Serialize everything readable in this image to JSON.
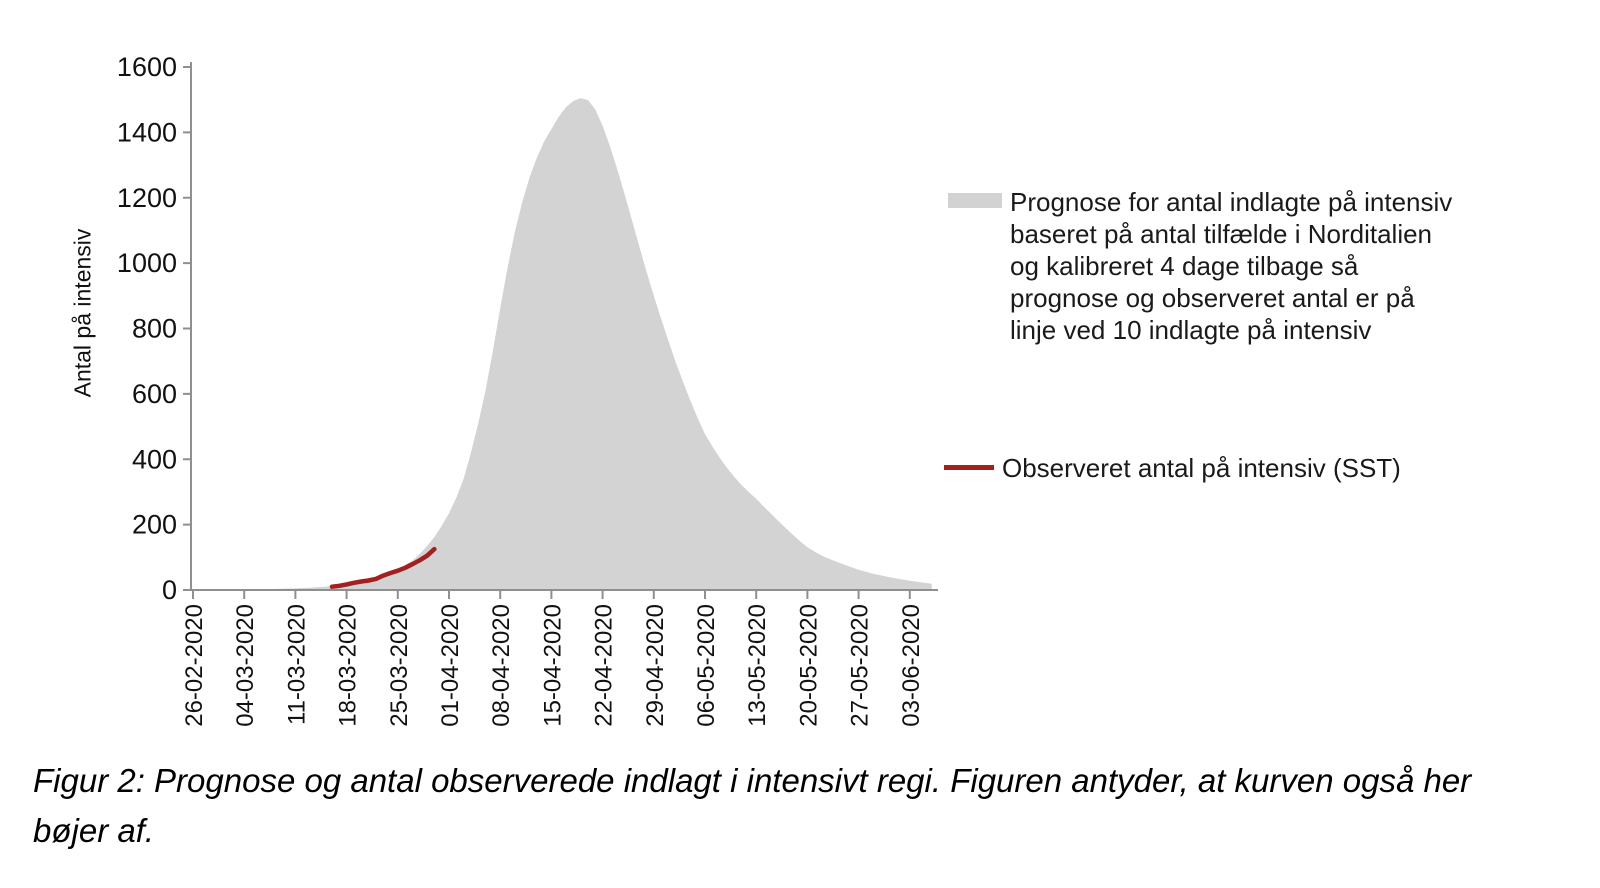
{
  "figure": {
    "caption": "Figur 2: Prognose og antal observerede indlagt i intensivt regi. Figuren antyder, at kurven også her bøjer af."
  },
  "legend": {
    "items": [
      {
        "swatch": "gray-area-swatch",
        "color": "#d2d2d2",
        "label": "Prognose for antal indlagte på intensiv baseret på antal tilfælde i Norditalien og kalibreret 4 dage tilbage så prognose og observeret antal er på linje ved 10 indlagte på intensiv"
      },
      {
        "swatch": "red-line-swatch",
        "color": "#a32020",
        "label": "Observeret antal på intensiv (SST)"
      }
    ]
  },
  "chart_data": {
    "type": "area",
    "title": "",
    "xlabel": "",
    "ylabel": "Antal på intensiv",
    "ylim": [
      0,
      1600
    ],
    "grid": false,
    "legend_position": "right",
    "y_ticks": [
      0,
      200,
      400,
      600,
      800,
      1000,
      1200,
      1400,
      1600
    ],
    "x_tick_labels": [
      "26-02-2020",
      "04-03-2020",
      "11-03-2020",
      "18-03-2020",
      "25-03-2020",
      "01-04-2020",
      "08-04-2020",
      "15-04-2020",
      "22-04-2020",
      "29-04-2020",
      "06-05-2020",
      "13-05-2020",
      "20-05-2020",
      "27-05-2020",
      "03-06-2020"
    ],
    "x_tick_interval_days": 7,
    "x_unit": "days since 26-02-2020",
    "series": [
      {
        "name": "Prognose for antal indlagte på intensiv baseret på antal tilfælde i Norditalien og kalibreret 4 dage tilbage så prognose og observeret antal er på linje ved 10 indlagte på intensiv",
        "type": "area",
        "color": "#d3d3d3",
        "peak": {
          "date": "19-04-2020",
          "value": 1505
        },
        "points_day_value": [
          [
            0,
            0
          ],
          [
            4,
            1
          ],
          [
            8,
            2
          ],
          [
            11,
            3
          ],
          [
            14,
            5
          ],
          [
            16,
            7
          ],
          [
            18,
            10
          ],
          [
            20,
            13
          ],
          [
            22,
            20
          ],
          [
            24,
            30
          ],
          [
            26,
            45
          ],
          [
            28,
            62
          ],
          [
            30,
            90
          ],
          [
            31,
            110
          ],
          [
            32,
            135
          ],
          [
            33,
            162
          ],
          [
            34,
            196
          ],
          [
            35,
            235
          ],
          [
            36,
            282
          ],
          [
            37,
            340
          ],
          [
            38,
            420
          ],
          [
            39,
            510
          ],
          [
            40,
            612
          ],
          [
            41,
            732
          ],
          [
            42,
            862
          ],
          [
            43,
            985
          ],
          [
            44,
            1095
          ],
          [
            45,
            1185
          ],
          [
            46,
            1262
          ],
          [
            47,
            1322
          ],
          [
            48,
            1372
          ],
          [
            49,
            1410
          ],
          [
            50,
            1448
          ],
          [
            51,
            1477
          ],
          [
            52,
            1496
          ],
          [
            53,
            1505
          ],
          [
            54,
            1499
          ],
          [
            55,
            1470
          ],
          [
            56,
            1420
          ],
          [
            57,
            1358
          ],
          [
            58,
            1288
          ],
          [
            59,
            1212
          ],
          [
            60,
            1132
          ],
          [
            61,
            1052
          ],
          [
            62,
            974
          ],
          [
            63,
            900
          ],
          [
            64,
            830
          ],
          [
            65,
            762
          ],
          [
            66,
            697
          ],
          [
            67,
            636
          ],
          [
            68,
            579
          ],
          [
            69,
            526
          ],
          [
            70,
            477
          ],
          [
            71,
            440
          ],
          [
            72,
            405
          ],
          [
            73,
            374
          ],
          [
            74,
            346
          ],
          [
            75,
            321
          ],
          [
            76,
            299
          ],
          [
            77,
            279
          ],
          [
            78,
            256
          ],
          [
            79,
            234
          ],
          [
            80,
            212
          ],
          [
            81,
            190
          ],
          [
            82,
            169
          ],
          [
            83,
            149
          ],
          [
            84,
            131
          ],
          [
            85,
            117
          ],
          [
            86,
            105
          ],
          [
            87,
            95
          ],
          [
            88,
            86
          ],
          [
            89,
            78
          ],
          [
            90,
            70
          ],
          [
            91,
            62
          ],
          [
            92,
            56
          ],
          [
            93,
            50
          ],
          [
            94,
            45
          ],
          [
            95,
            40
          ],
          [
            96,
            36
          ],
          [
            97,
            32
          ],
          [
            98,
            28
          ],
          [
            99,
            25
          ],
          [
            100,
            22
          ],
          [
            101,
            19
          ]
        ]
      },
      {
        "name": "Observeret antal på intensiv (SST)",
        "type": "line",
        "color": "#a32020",
        "points_day_value": [
          [
            19,
            10
          ],
          [
            20,
            13
          ],
          [
            21,
            17
          ],
          [
            22,
            22
          ],
          [
            23,
            26
          ],
          [
            24,
            29
          ],
          [
            25,
            34
          ],
          [
            26,
            44
          ],
          [
            27,
            52
          ],
          [
            28,
            59
          ],
          [
            29,
            68
          ],
          [
            30,
            79
          ],
          [
            31,
            91
          ],
          [
            32,
            105
          ],
          [
            33,
            125
          ]
        ]
      }
    ]
  }
}
